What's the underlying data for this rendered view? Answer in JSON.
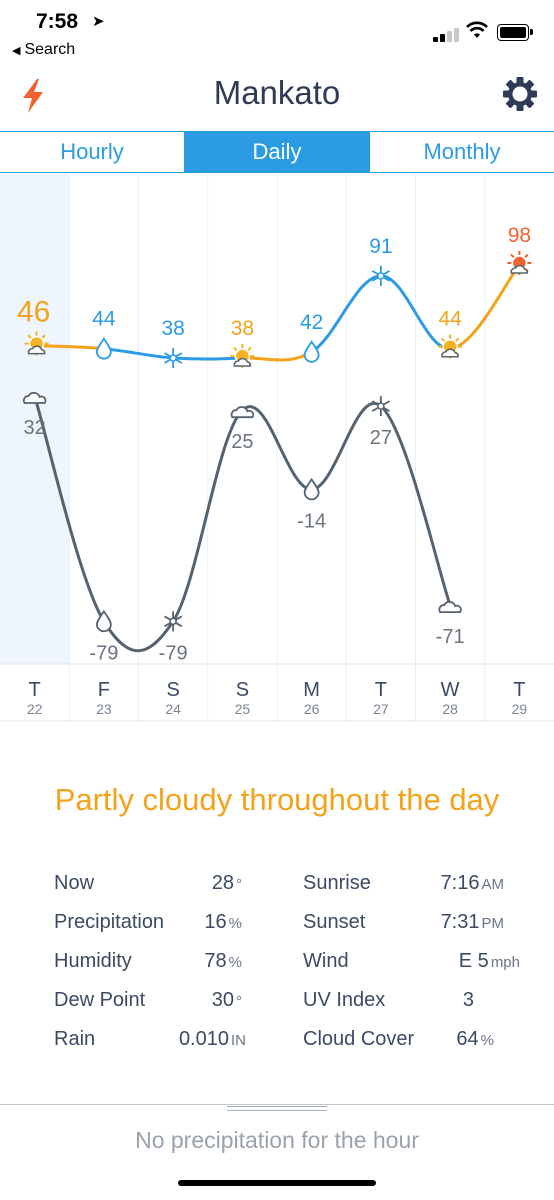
{
  "status": {
    "time": "7:58",
    "back_label": "Search"
  },
  "header": {
    "title": "Mankato"
  },
  "tabs": [
    {
      "label": "Hourly",
      "active": false
    },
    {
      "label": "Daily",
      "active": true
    },
    {
      "label": "Monthly",
      "active": false
    }
  ],
  "colors": {
    "accent": "#2b9be3",
    "warm": "#f4a21a",
    "hot": "#f2622e",
    "low_line": "#56636f",
    "title": "#2d3b55"
  },
  "chart_data": {
    "type": "line",
    "x": [
      "T 22",
      "F 23",
      "S 24",
      "S 25",
      "M 26",
      "T 27",
      "W 28",
      "T 29"
    ],
    "days": [
      {
        "letter": "T",
        "date": "22"
      },
      {
        "letter": "F",
        "date": "23"
      },
      {
        "letter": "S",
        "date": "24"
      },
      {
        "letter": "S",
        "date": "25"
      },
      {
        "letter": "M",
        "date": "26"
      },
      {
        "letter": "T",
        "date": "27"
      },
      {
        "letter": "W",
        "date": "28"
      },
      {
        "letter": "T",
        "date": "29"
      }
    ],
    "series": [
      {
        "values": [
          46,
          44,
          38,
          38,
          42,
          91,
          44,
          98
        ]
      },
      {
        "values": [
          32,
          -79,
          -79,
          25,
          -14,
          27,
          -71,
          null
        ]
      }
    ],
    "high_icons": [
      "partly-sunny",
      "rain-drop",
      "snowflake",
      "partly-sunny",
      "rain-drop",
      "snowflake",
      "partly-sunny",
      "sunny-hot"
    ],
    "low_icons": [
      "cloudy",
      "rain-drop",
      "snowflake",
      "cloudy",
      "rain-drop",
      "snowflake",
      "cloudy",
      null
    ],
    "highlight_day": 0
  },
  "summary": "Partly cloudy throughout the day",
  "details": {
    "left": [
      {
        "label": "Now",
        "value": "28",
        "unit": "°"
      },
      {
        "label": "Precipitation",
        "value": "16",
        "unit": "%"
      },
      {
        "label": "Humidity",
        "value": "78",
        "unit": "%"
      },
      {
        "label": "Dew Point",
        "value": "30",
        "unit": "°"
      },
      {
        "label": "Rain",
        "value": "0.010",
        "unit": "IN"
      }
    ],
    "right": [
      {
        "label": "Sunrise",
        "value": "7:16",
        "unit": "AM"
      },
      {
        "label": "Sunset",
        "value": "7:31",
        "unit": "PM"
      },
      {
        "label": "Wind",
        "value": "E 5",
        "unit": "mph"
      },
      {
        "label": "UV Index",
        "value": "3",
        "unit": ""
      },
      {
        "label": "Cloud Cover",
        "value": "64",
        "unit": "%"
      }
    ]
  },
  "footer": {
    "message": "No precipitation for the hour"
  }
}
